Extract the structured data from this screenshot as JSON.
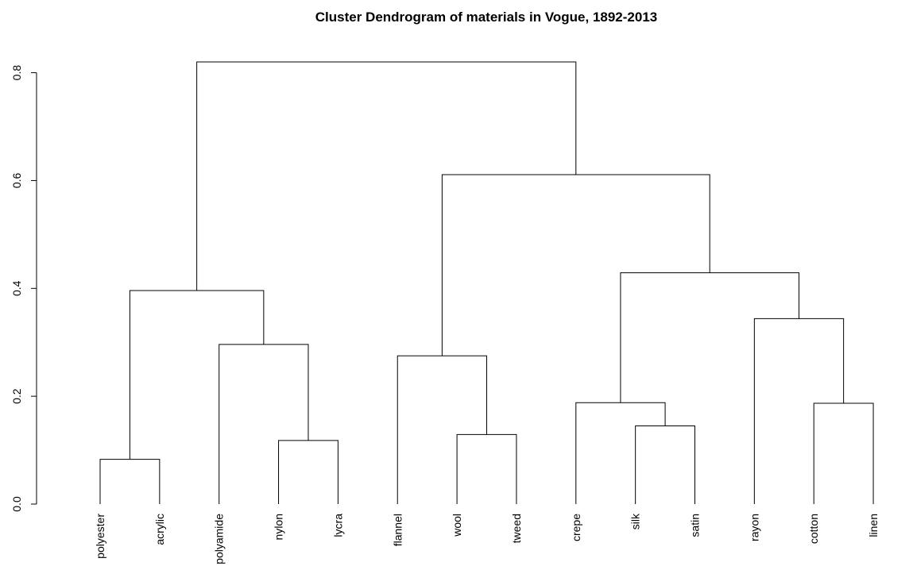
{
  "chart_data": {
    "type": "dendrogram",
    "title": "Cluster Dendrogram of materials in Vogue, 1892-2013",
    "xlabel": "",
    "ylabel": "",
    "ylim": [
      0,
      0.82
    ],
    "yticks": [
      0.0,
      0.2,
      0.4,
      0.6,
      0.8
    ],
    "ytick_labels": [
      "0.0",
      "0.2",
      "0.4",
      "0.6",
      "0.8"
    ],
    "grid": false,
    "leaves": [
      "polyester",
      "acrylic",
      "polyamide",
      "nylon",
      "lycra",
      "flannel",
      "wool",
      "tweed",
      "crepe",
      "silk",
      "satin",
      "rayon",
      "cotton",
      "linen"
    ],
    "merges": [
      {
        "left": "polyester",
        "right": "acrylic",
        "height": 0.083
      },
      {
        "left": "nylon",
        "right": "lycra",
        "height": 0.118
      },
      {
        "left": "polyamide",
        "right": "nylon+lycra",
        "height": 0.296
      },
      {
        "left": "polyester+acrylic",
        "right": "polyamide+nylon+lycra",
        "height": 0.396
      },
      {
        "left": "wool",
        "right": "tweed",
        "height": 0.129
      },
      {
        "left": "flannel",
        "right": "wool+tweed",
        "height": 0.275
      },
      {
        "left": "silk",
        "right": "satin",
        "height": 0.145
      },
      {
        "left": "crepe",
        "right": "silk+satin",
        "height": 0.188
      },
      {
        "left": "cotton",
        "right": "linen",
        "height": 0.187
      },
      {
        "left": "rayon",
        "right": "cotton+linen",
        "height": 0.344
      },
      {
        "left": "crepe+silk+satin",
        "right": "rayon+cotton+linen",
        "height": 0.429
      },
      {
        "left": "flannel+wool+tweed",
        "right": "crepe..linen",
        "height": 0.611
      },
      {
        "left": "polyester..lycra",
        "right": "flannel..linen",
        "height": 0.82
      }
    ]
  }
}
